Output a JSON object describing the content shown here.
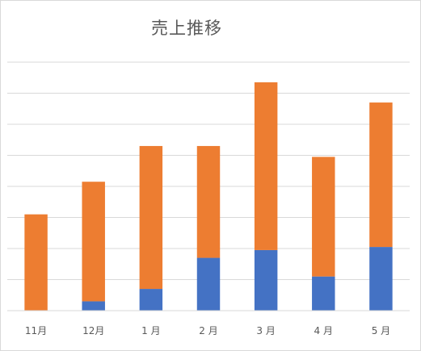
{
  "chart_data": {
    "type": "bar",
    "stacked": true,
    "title": "売上推移",
    "xlabel": "",
    "ylabel": "",
    "categories": [
      "11月",
      "12月",
      "1 月",
      "2 月",
      "3 月",
      "4 月",
      "5 月"
    ],
    "series": [
      {
        "color": "#4472C4",
        "values": [
          0,
          3,
          7,
          17,
          19.5,
          11,
          20.5
        ]
      },
      {
        "color": "#ED7D31",
        "values": [
          31,
          38.5,
          46,
          36,
          54,
          38.5,
          46.5
        ]
      }
    ],
    "ylim": [
      0,
      80
    ],
    "grid": true,
    "legend": "none"
  }
}
